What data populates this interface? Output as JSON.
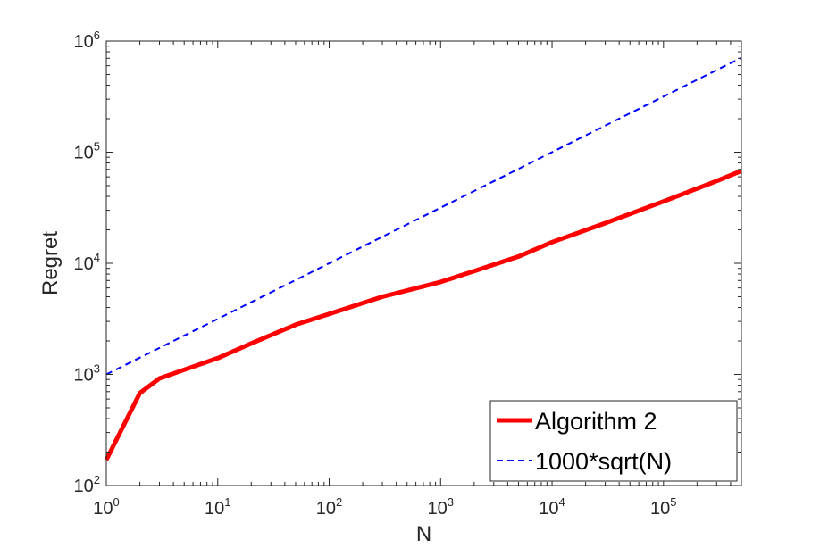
{
  "chart_data": {
    "type": "line",
    "xlabel": "N",
    "ylabel": "Regret",
    "xscale": "log",
    "yscale": "log",
    "xlim": [
      1,
      500000
    ],
    "ylim": [
      100,
      1000000
    ],
    "x_ticks": [
      {
        "base": "10",
        "exp": "0",
        "value": 1
      },
      {
        "base": "10",
        "exp": "1",
        "value": 10
      },
      {
        "base": "10",
        "exp": "2",
        "value": 100
      },
      {
        "base": "10",
        "exp": "3",
        "value": 1000
      },
      {
        "base": "10",
        "exp": "4",
        "value": 10000
      },
      {
        "base": "10",
        "exp": "5",
        "value": 100000
      }
    ],
    "y_ticks": [
      {
        "base": "10",
        "exp": "2",
        "value": 100
      },
      {
        "base": "10",
        "exp": "3",
        "value": 1000
      },
      {
        "base": "10",
        "exp": "4",
        "value": 10000
      },
      {
        "base": "10",
        "exp": "5",
        "value": 100000
      },
      {
        "base": "10",
        "exp": "6",
        "value": 1000000
      }
    ],
    "grid": false,
    "legend_position": "bottom-right",
    "series": [
      {
        "name": "Algorithm 2",
        "color": "#ff0000",
        "style": "solid",
        "x": [
          1,
          2,
          3,
          5,
          10,
          20,
          50,
          100,
          300,
          1000,
          2000,
          5000,
          10000,
          30000,
          100000,
          300000,
          500000
        ],
        "y": [
          170,
          680,
          920,
          1100,
          1400,
          1900,
          2800,
          3500,
          5000,
          6800,
          8500,
          11500,
          15500,
          23000,
          36000,
          55000,
          68000
        ]
      },
      {
        "name": "1000*sqrt(N)",
        "color": "#0000ff",
        "style": "dashed",
        "x": [
          1,
          10,
          100,
          1000,
          10000,
          100000,
          500000
        ],
        "y": [
          1000,
          3162,
          10000,
          31623,
          100000,
          316228,
          707107
        ]
      }
    ]
  }
}
